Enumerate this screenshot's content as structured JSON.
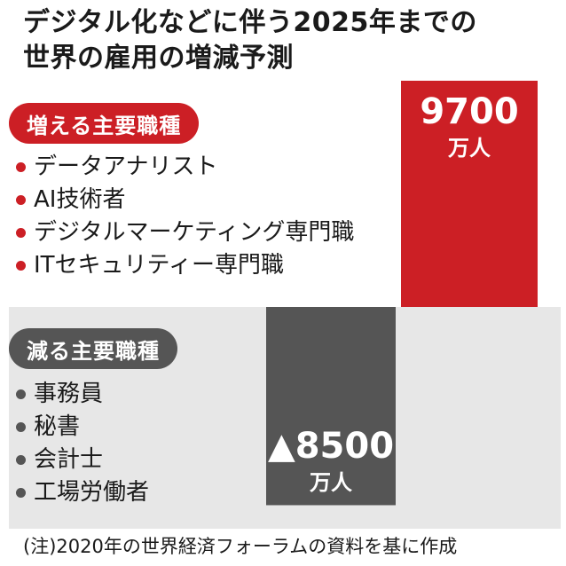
{
  "title_line1": "デジタル化などに伴う2025年までの",
  "title_line2": "世界の雇用の増減予測",
  "increase": {
    "label": "増える主要職種",
    "items": [
      "データアナリスト",
      "AI技術者",
      "デジタルマーケティング専門職",
      "ITセキュリティー専門職"
    ]
  },
  "decrease": {
    "label": "減る主要職種",
    "items": [
      "事務員",
      "秘書",
      "会計士",
      "工場労働者"
    ]
  },
  "footnote": "(注)2020年の世界経済フォーラムの資料を基に作成",
  "colors": {
    "increase": "#cc1f25",
    "decrease": "#555555",
    "bullet_up": "#cc1f25",
    "bullet_down": "#555555",
    "band": "#e7e7e7",
    "bar_text": "#ffffff"
  },
  "chart_data": {
    "type": "bar",
    "categories": [
      "減る主要職種",
      "増える主要職種"
    ],
    "values": [
      -8500,
      9700
    ],
    "unit": "万人",
    "data_labels": [
      "▲8500",
      "9700"
    ],
    "unit_labels": [
      "万人",
      "万人"
    ]
  }
}
